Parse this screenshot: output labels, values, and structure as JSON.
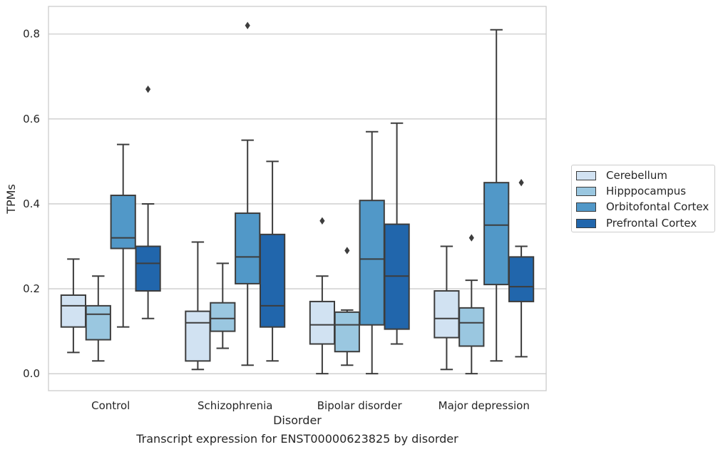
{
  "caption": "Transcript expression for ENST00000623825 by disorder",
  "chart_data": {
    "type": "box",
    "xlabel": "Disorder",
    "ylabel": "TPMs",
    "ylim": [
      -0.04,
      0.865
    ],
    "yticks": [
      "0.0",
      "0.2",
      "0.4",
      "0.6",
      "0.8"
    ],
    "grid": "horizontal",
    "legend_position": "right",
    "categories": [
      "Control",
      "Schizophrenia",
      "Bipolar disorder",
      "Major depression"
    ],
    "series": [
      {
        "name": "Cerebellum",
        "color": "#d1e2f2",
        "boxes": [
          {
            "whisker_low": 0.05,
            "q1": 0.11,
            "median": 0.16,
            "q3": 0.185,
            "whisker_high": 0.27,
            "outliers": []
          },
          {
            "whisker_low": 0.01,
            "q1": 0.03,
            "median": 0.12,
            "q3": 0.147,
            "whisker_high": 0.31,
            "outliers": []
          },
          {
            "whisker_low": 0.0,
            "q1": 0.07,
            "median": 0.115,
            "q3": 0.17,
            "whisker_high": 0.23,
            "outliers": [
              0.36
            ]
          },
          {
            "whisker_low": 0.01,
            "q1": 0.085,
            "median": 0.13,
            "q3": 0.195,
            "whisker_high": 0.3,
            "outliers": []
          }
        ]
      },
      {
        "name": "Hipppocampus",
        "color": "#9ac7e0",
        "boxes": [
          {
            "whisker_low": 0.03,
            "q1": 0.08,
            "median": 0.14,
            "q3": 0.16,
            "whisker_high": 0.23,
            "outliers": []
          },
          {
            "whisker_low": 0.06,
            "q1": 0.1,
            "median": 0.13,
            "q3": 0.167,
            "whisker_high": 0.26,
            "outliers": []
          },
          {
            "whisker_low": 0.02,
            "q1": 0.052,
            "median": 0.115,
            "q3": 0.145,
            "whisker_high": 0.15,
            "outliers": [
              0.29
            ]
          },
          {
            "whisker_low": 0.0,
            "q1": 0.065,
            "median": 0.12,
            "q3": 0.155,
            "whisker_high": 0.22,
            "outliers": [
              0.32
            ]
          }
        ]
      },
      {
        "name": "Orbitofontal Cortex",
        "color": "#5198c8",
        "boxes": [
          {
            "whisker_low": 0.11,
            "q1": 0.295,
            "median": 0.32,
            "q3": 0.42,
            "whisker_high": 0.54,
            "outliers": []
          },
          {
            "whisker_low": 0.02,
            "q1": 0.212,
            "median": 0.275,
            "q3": 0.378,
            "whisker_high": 0.55,
            "outliers": [
              0.82
            ]
          },
          {
            "whisker_low": 0.0,
            "q1": 0.115,
            "median": 0.27,
            "q3": 0.408,
            "whisker_high": 0.57,
            "outliers": []
          },
          {
            "whisker_low": 0.03,
            "q1": 0.21,
            "median": 0.35,
            "q3": 0.45,
            "whisker_high": 0.81,
            "outliers": []
          }
        ]
      },
      {
        "name": "Prefrontal Cortex",
        "color": "#2166ac",
        "boxes": [
          {
            "whisker_low": 0.13,
            "q1": 0.195,
            "median": 0.26,
            "q3": 0.3,
            "whisker_high": 0.4,
            "outliers": [
              0.67
            ]
          },
          {
            "whisker_low": 0.03,
            "q1": 0.11,
            "median": 0.16,
            "q3": 0.328,
            "whisker_high": 0.5,
            "outliers": []
          },
          {
            "whisker_low": 0.07,
            "q1": 0.105,
            "median": 0.23,
            "q3": 0.352,
            "whisker_high": 0.59,
            "outliers": []
          },
          {
            "whisker_low": 0.04,
            "q1": 0.17,
            "median": 0.205,
            "q3": 0.275,
            "whisker_high": 0.3,
            "outliers": [
              0.45
            ]
          }
        ]
      }
    ]
  }
}
